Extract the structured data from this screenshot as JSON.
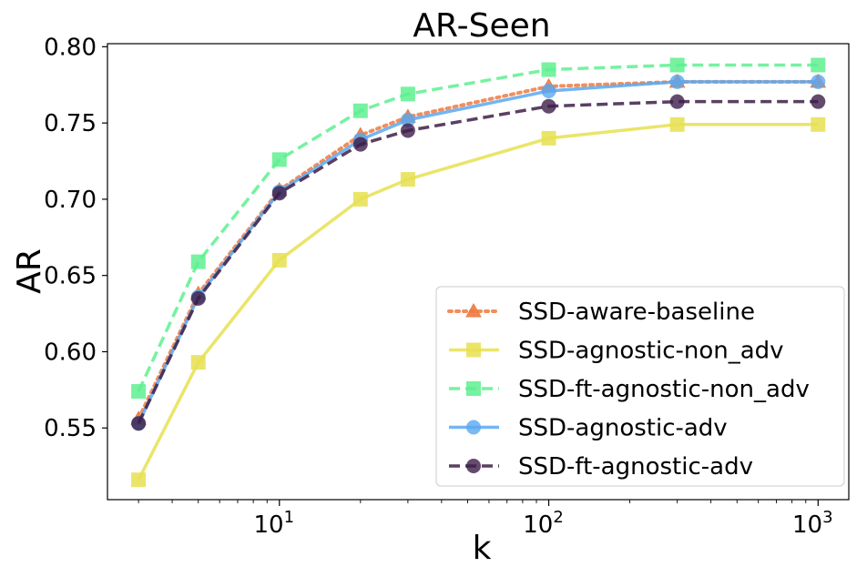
{
  "chart_data": {
    "type": "line",
    "title": "AR-Seen",
    "xlabel": "k",
    "ylabel": "AR",
    "x_scale": "log",
    "xlim": [
      2.3,
      1300
    ],
    "ylim": [
      0.503,
      0.802
    ],
    "grid": false,
    "legend_position": "lower-right",
    "x_ticks": [
      {
        "value": 10,
        "base": "10",
        "exp": "1"
      },
      {
        "value": 100,
        "base": "10",
        "exp": "2"
      },
      {
        "value": 1000,
        "base": "10",
        "exp": "3"
      }
    ],
    "y_ticks": [
      {
        "value": 0.55,
        "label": "0.55"
      },
      {
        "value": 0.6,
        "label": "0.60"
      },
      {
        "value": 0.65,
        "label": "0.65"
      },
      {
        "value": 0.7,
        "label": "0.70"
      },
      {
        "value": 0.75,
        "label": "0.75"
      },
      {
        "value": 0.8,
        "label": "0.80"
      }
    ],
    "x": [
      3,
      5,
      10,
      20,
      30,
      100,
      300,
      1000
    ],
    "series": [
      {
        "name": "SSD-aware-baseline",
        "color": "#ee7a40",
        "dash": "dotted",
        "marker": "triangle",
        "values": [
          0.556,
          0.638,
          0.706,
          0.742,
          0.754,
          0.774,
          0.777,
          0.777
        ]
      },
      {
        "name": "SSD-agnostic-non_adv",
        "color": "#e6e050",
        "dash": "solid",
        "marker": "square",
        "values": [
          0.516,
          0.593,
          0.66,
          0.7,
          0.713,
          0.74,
          0.749,
          0.749
        ]
      },
      {
        "name": "SSD-ft-agnostic-non_adv",
        "color": "#5ef08f",
        "dash": "dashed",
        "marker": "square",
        "values": [
          0.574,
          0.659,
          0.726,
          0.758,
          0.769,
          0.785,
          0.788,
          0.788
        ]
      },
      {
        "name": "SSD-agnostic-adv",
        "color": "#5aa8f0",
        "dash": "solid",
        "marker": "circle",
        "values": [
          0.553,
          0.636,
          0.705,
          0.739,
          0.752,
          0.771,
          0.777,
          0.777
        ]
      },
      {
        "name": "SSD-ft-agnostic-adv",
        "color": "#3d1e48",
        "dash": "dashed",
        "marker": "circle",
        "values": [
          0.553,
          0.635,
          0.704,
          0.736,
          0.745,
          0.761,
          0.764,
          0.764
        ]
      }
    ]
  }
}
